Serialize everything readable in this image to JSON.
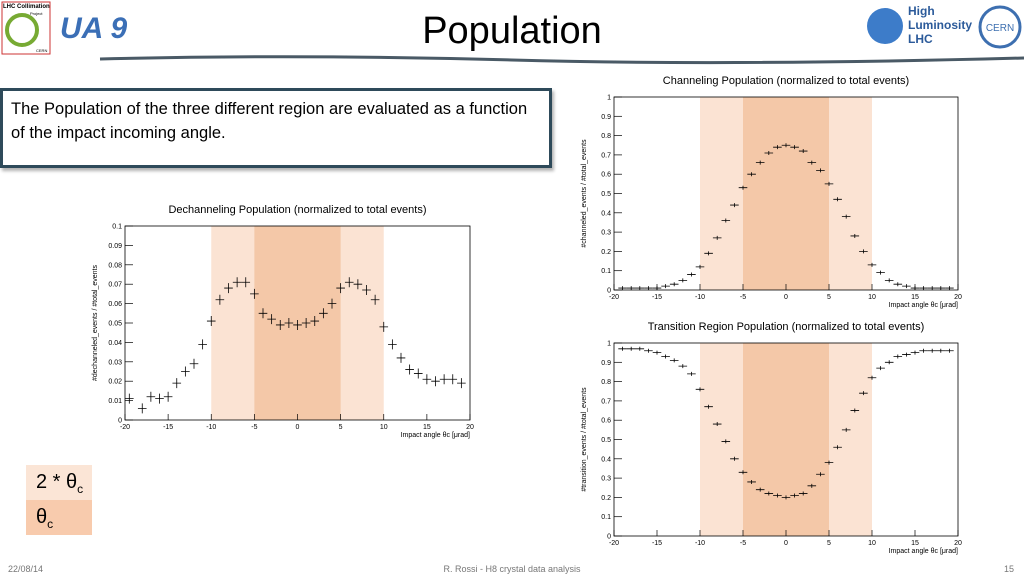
{
  "header": {
    "title": "Population",
    "left_logo": [
      "LHC Collimation",
      "Project",
      "CERN"
    ],
    "ua9_logo": "UA 9",
    "right_logo": [
      "High",
      "Luminosity",
      "LHC"
    ],
    "cern_logo": "CERN"
  },
  "text_box": "The Population of the three different region are evaluated as a function of the impact incoming angle.",
  "legend": [
    {
      "label": "2 * θ",
      "subscript": "c",
      "color": "#fbe5d6"
    },
    {
      "label": "θ",
      "subscript": "c",
      "color": "#f8cbad"
    }
  ],
  "footer": {
    "date": "22/08/14",
    "center": "R. Rossi - H8 crystal data analysis",
    "page": "15"
  },
  "chart_data": [
    {
      "type": "scatter",
      "title": "Dechanneling Population (normalized to total events)",
      "xlabel": "Impact angle θc [μrad]",
      "ylabel": "#dechanneled_events / #total_events",
      "x": [
        -19.5,
        -18,
        -17,
        -16,
        -15,
        -14,
        -13,
        -12,
        -11,
        -10,
        -9,
        -8,
        -7,
        -6,
        -5,
        -4,
        -3,
        -2,
        -1,
        0,
        1,
        2,
        3,
        4,
        5,
        6,
        7,
        8,
        9,
        10,
        11,
        12,
        13,
        14,
        15,
        16,
        17,
        18,
        19
      ],
      "values": [
        0.011,
        0.006,
        0.012,
        0.011,
        0.012,
        0.019,
        0.025,
        0.029,
        0.039,
        0.051,
        0.062,
        0.068,
        0.071,
        0.071,
        0.065,
        0.055,
        0.052,
        0.049,
        0.05,
        0.049,
        0.05,
        0.051,
        0.055,
        0.06,
        0.068,
        0.071,
        0.07,
        0.067,
        0.062,
        0.048,
        0.039,
        0.032,
        0.026,
        0.024,
        0.021,
        0.02,
        0.021,
        0.021,
        0.019
      ],
      "color": "#000000",
      "xlim": [
        -20,
        20
      ],
      "ylim": [
        0,
        0.1
      ],
      "xticks": [
        -20,
        -15,
        -10,
        -5,
        0,
        5,
        10,
        15,
        20
      ],
      "yticks": [
        0,
        0.01,
        0.02,
        0.03,
        0.04,
        0.05,
        0.06,
        0.07,
        0.08,
        0.09,
        0.1
      ],
      "bands": [
        {
          "from": -10,
          "to": 10,
          "color": "#fbe3d3"
        },
        {
          "from": -5,
          "to": 5,
          "color": "#f4c8a8"
        }
      ]
    },
    {
      "type": "scatter",
      "title": "Channeling Population (normalized to total events)",
      "xlabel": "Impact angle θc [μrad]",
      "ylabel": "#channeled_events / #total_events",
      "x": [
        -19,
        -18,
        -17,
        -16,
        -15,
        -14,
        -13,
        -12,
        -11,
        -10,
        -9,
        -8,
        -7,
        -6,
        -5,
        -4,
        -3,
        -2,
        -1,
        0,
        1,
        2,
        3,
        4,
        5,
        6,
        7,
        8,
        9,
        10,
        11,
        12,
        13,
        14,
        15,
        16,
        17,
        18,
        19
      ],
      "values": [
        0.01,
        0.01,
        0.01,
        0.01,
        0.01,
        0.02,
        0.03,
        0.05,
        0.08,
        0.12,
        0.19,
        0.27,
        0.36,
        0.44,
        0.53,
        0.6,
        0.66,
        0.71,
        0.74,
        0.75,
        0.74,
        0.72,
        0.66,
        0.62,
        0.55,
        0.47,
        0.38,
        0.28,
        0.2,
        0.13,
        0.09,
        0.05,
        0.03,
        0.02,
        0.01,
        0.01,
        0.01,
        0.01,
        0.01
      ],
      "color": "#000000",
      "xlim": [
        -20,
        20
      ],
      "ylim": [
        0,
        1
      ],
      "xticks": [
        -20,
        -15,
        -10,
        -5,
        0,
        5,
        10,
        15,
        20
      ],
      "yticks": [
        0,
        0.1,
        0.2,
        0.3,
        0.4,
        0.5,
        0.6,
        0.7,
        0.8,
        0.9,
        1
      ],
      "bands": [
        {
          "from": -10,
          "to": 10,
          "color": "#fbe3d3"
        },
        {
          "from": -5,
          "to": 5,
          "color": "#f4c8a8"
        }
      ]
    },
    {
      "type": "scatter",
      "title": "Transition Region Population (normalized to total events)",
      "xlabel": "Impact angle θc [μrad]",
      "ylabel": "#transition_events / #total_events",
      "x": [
        -19,
        -18,
        -17,
        -16,
        -15,
        -14,
        -13,
        -12,
        -11,
        -10,
        -9,
        -8,
        -7,
        -6,
        -5,
        -4,
        -3,
        -2,
        -1,
        0,
        1,
        2,
        3,
        4,
        5,
        6,
        7,
        8,
        9,
        10,
        11,
        12,
        13,
        14,
        15,
        16,
        17,
        18,
        19
      ],
      "values": [
        0.97,
        0.97,
        0.97,
        0.96,
        0.95,
        0.93,
        0.91,
        0.88,
        0.84,
        0.76,
        0.67,
        0.58,
        0.49,
        0.4,
        0.33,
        0.28,
        0.24,
        0.22,
        0.21,
        0.2,
        0.21,
        0.22,
        0.26,
        0.32,
        0.38,
        0.46,
        0.55,
        0.65,
        0.74,
        0.82,
        0.87,
        0.9,
        0.93,
        0.94,
        0.95,
        0.96,
        0.96,
        0.96,
        0.96
      ],
      "color": "#000000",
      "xlim": [
        -20,
        20
      ],
      "ylim": [
        0,
        1
      ],
      "xticks": [
        -20,
        -15,
        -10,
        -5,
        0,
        5,
        10,
        15,
        20
      ],
      "yticks": [
        0,
        0.1,
        0.2,
        0.3,
        0.4,
        0.5,
        0.6,
        0.7,
        0.8,
        0.9,
        1
      ],
      "bands": [
        {
          "from": -10,
          "to": 10,
          "color": "#fbe3d3"
        },
        {
          "from": -5,
          "to": 5,
          "color": "#f4c8a8"
        }
      ]
    }
  ]
}
